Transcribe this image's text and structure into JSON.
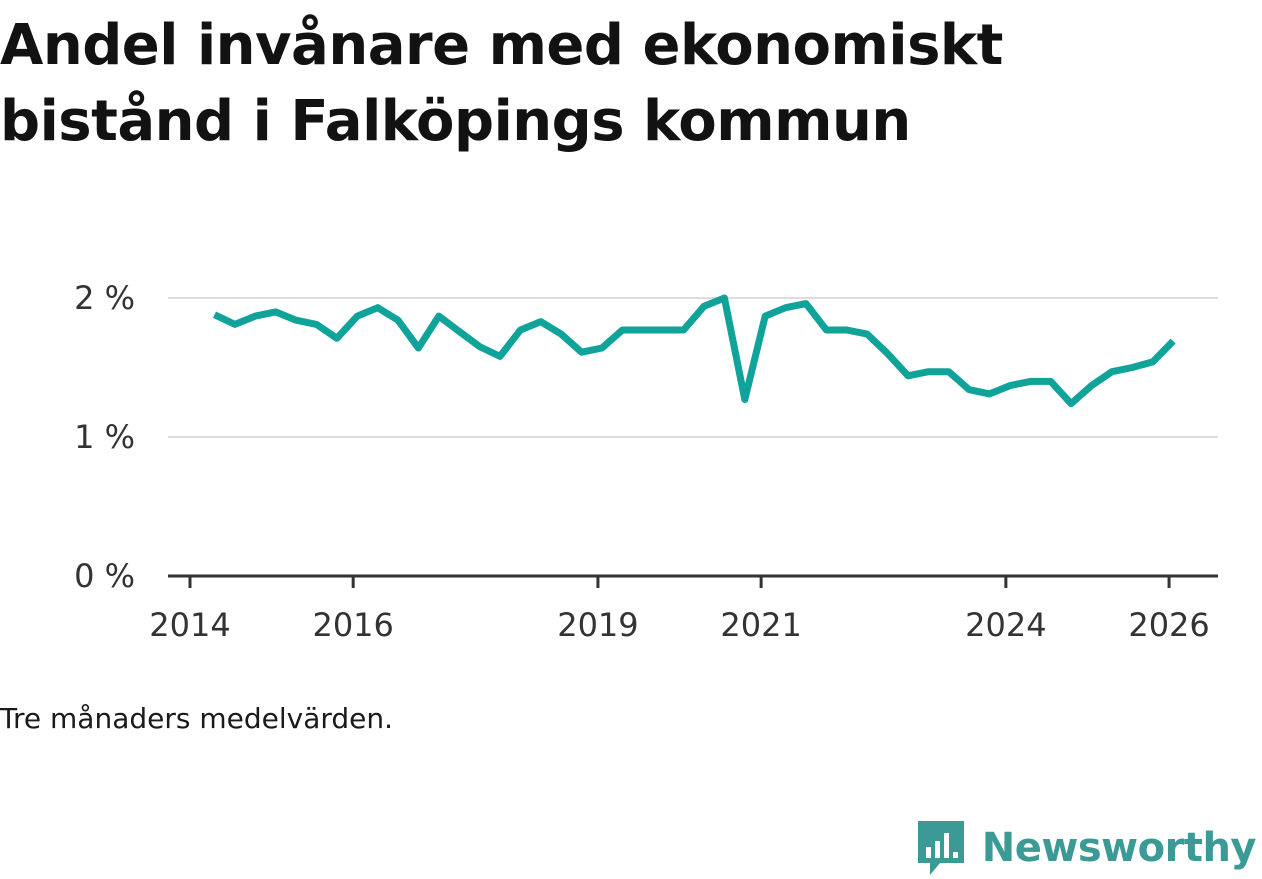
{
  "title": "Andel invånare med ekonomiskt bistånd i Falköpings kommun",
  "note": "Tre månaders medelvärden.",
  "brand": "Newsworthy",
  "colors": {
    "line": "#0fa39a",
    "grid": "#dddddd",
    "axis": "#333333",
    "brand": "#3b9a95"
  },
  "chart_data": {
    "type": "line",
    "title": "Andel invånare med ekonomiskt bistånd i Falköpings kommun",
    "xlabel": "",
    "ylabel": "",
    "xlim": [
      2014,
      2026.6
    ],
    "ylim": [
      0,
      2
    ],
    "y_ticks": [
      {
        "value": 0,
        "label": "0 %"
      },
      {
        "value": 1,
        "label": "1 %"
      },
      {
        "value": 2,
        "label": "2 %"
      }
    ],
    "x_ticks": [
      {
        "value": 2014,
        "label": "2014"
      },
      {
        "value": 2016,
        "label": "2016"
      },
      {
        "value": 2019,
        "label": "2019"
      },
      {
        "value": 2021,
        "label": "2021"
      },
      {
        "value": 2024,
        "label": "2024"
      },
      {
        "value": 2026,
        "label": "2026"
      }
    ],
    "series": [
      {
        "name": "Andel invånare med ekonomiskt bistånd",
        "unit": "%",
        "x": [
          2014.3,
          2014.55,
          2014.8,
          2015.05,
          2015.3,
          2015.55,
          2015.8,
          2016.05,
          2016.3,
          2016.55,
          2016.8,
          2017.05,
          2017.3,
          2017.55,
          2017.8,
          2018.05,
          2018.3,
          2018.55,
          2018.8,
          2019.05,
          2019.3,
          2019.55,
          2019.8,
          2020.05,
          2020.3,
          2020.55,
          2020.8,
          2021.05,
          2021.3,
          2021.55,
          2021.8,
          2022.05,
          2022.3,
          2022.55,
          2022.8,
          2023.05,
          2023.3,
          2023.55,
          2023.8,
          2024.05,
          2024.3,
          2024.55,
          2024.8,
          2025.05,
          2025.3,
          2025.55,
          2025.8,
          2026.05
        ],
        "values": [
          1.88,
          1.81,
          1.87,
          1.9,
          1.84,
          1.81,
          1.71,
          1.87,
          1.93,
          1.84,
          1.64,
          1.87,
          1.76,
          1.65,
          1.58,
          1.77,
          1.83,
          1.74,
          1.61,
          1.64,
          1.77,
          1.77,
          1.77,
          1.77,
          1.94,
          2.0,
          1.27,
          1.87,
          1.93,
          1.96,
          1.77,
          1.77,
          1.74,
          1.6,
          1.44,
          1.47,
          1.47,
          1.34,
          1.31,
          1.37,
          1.4,
          1.4,
          1.24,
          1.37,
          1.47,
          1.5,
          1.54,
          1.69
        ]
      }
    ]
  }
}
